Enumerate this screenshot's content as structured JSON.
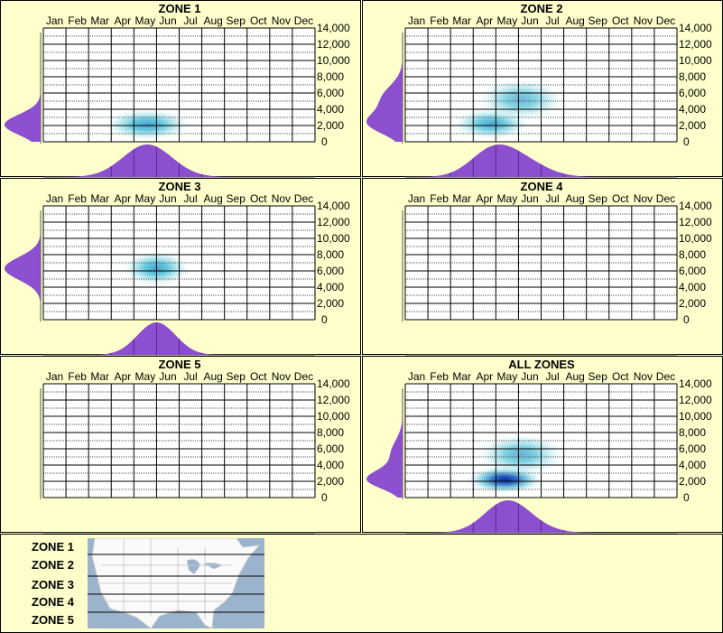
{
  "chart_data": [
    {
      "type": "heatmap",
      "title": "ZONE 1",
      "x_tick_labels": [
        "Jan",
        "Feb",
        "Mar",
        "Apr",
        "May",
        "Jun",
        "Jul",
        "Aug",
        "Sep",
        "Oct",
        "Nov",
        "Dec"
      ],
      "y_tick_labels": [
        "14,000",
        "12,000",
        "10,000",
        "8,000",
        "6,000",
        "4,000",
        "2,000",
        "0"
      ],
      "ylim": [
        0,
        14000
      ],
      "density_peaks": [
        {
          "month": 5.6,
          "elevation": 2100,
          "sd_month": 0.9,
          "sd_elev": 900,
          "weight": 0.55
        }
      ]
    },
    {
      "type": "heatmap",
      "title": "ZONE 2",
      "x_tick_labels": [
        "Jan",
        "Feb",
        "Mar",
        "Apr",
        "May",
        "Jun",
        "Jul",
        "Aug",
        "Sep",
        "Oct",
        "Nov",
        "Dec"
      ],
      "y_tick_labels": [
        "14,000",
        "12,000",
        "10,000",
        "8,000",
        "6,000",
        "4,000",
        "2,000",
        "0"
      ],
      "ylim": [
        0,
        14000
      ],
      "density_peaks": [
        {
          "month": 4.8,
          "elevation": 2200,
          "sd_month": 0.8,
          "sd_elev": 900,
          "weight": 0.45
        },
        {
          "month": 6.1,
          "elevation": 5200,
          "sd_month": 0.9,
          "sd_elev": 1200,
          "weight": 0.3
        }
      ]
    },
    {
      "type": "heatmap",
      "title": "ZONE 3",
      "x_tick_labels": [
        "Jan",
        "Feb",
        "Mar",
        "Apr",
        "May",
        "Jun",
        "Jul",
        "Aug",
        "Sep",
        "Oct",
        "Nov",
        "Dec"
      ],
      "y_tick_labels": [
        "14,000",
        "12,000",
        "10,000",
        "8,000",
        "6,000",
        "4,000",
        "2,000",
        "0"
      ],
      "ylim": [
        0,
        14000
      ],
      "density_peaks": [
        {
          "month": 6.0,
          "elevation": 6300,
          "sd_month": 0.7,
          "sd_elev": 1000,
          "weight": 0.55
        }
      ]
    },
    {
      "type": "heatmap",
      "title": "ZONE 4",
      "x_tick_labels": [
        "Jan",
        "Feb",
        "Mar",
        "Apr",
        "May",
        "Jun",
        "Jul",
        "Aug",
        "Sep",
        "Oct",
        "Nov",
        "Dec"
      ],
      "y_tick_labels": [
        "14,000",
        "12,000",
        "10,000",
        "8,000",
        "6,000",
        "4,000",
        "2,000",
        "0"
      ],
      "ylim": [
        0,
        14000
      ],
      "density_peaks": []
    },
    {
      "type": "heatmap",
      "title": "ZONE 5",
      "x_tick_labels": [
        "Jan",
        "Feb",
        "Mar",
        "Apr",
        "May",
        "Jun",
        "Jul",
        "Aug",
        "Sep",
        "Oct",
        "Nov",
        "Dec"
      ],
      "y_tick_labels": [
        "14,000",
        "12,000",
        "10,000",
        "8,000",
        "6,000",
        "4,000",
        "2,000",
        "0"
      ],
      "ylim": [
        0,
        14000
      ],
      "density_peaks": []
    },
    {
      "type": "heatmap",
      "title": "ALL ZONES",
      "x_tick_labels": [
        "Jan",
        "Feb",
        "Mar",
        "Apr",
        "May",
        "Jun",
        "Jul",
        "Aug",
        "Sep",
        "Oct",
        "Nov",
        "Dec"
      ],
      "y_tick_labels": [
        "14,000",
        "12,000",
        "10,000",
        "8,000",
        "6,000",
        "4,000",
        "2,000",
        "0"
      ],
      "ylim": [
        0,
        14000
      ],
      "density_peaks": [
        {
          "month": 5.4,
          "elevation": 2200,
          "sd_month": 0.8,
          "sd_elev": 800,
          "weight": 1.0
        },
        {
          "month": 6.1,
          "elevation": 5300,
          "sd_month": 0.9,
          "sd_elev": 1200,
          "weight": 0.35
        }
      ]
    }
  ],
  "legend": {
    "zones": [
      "ZONE 1",
      "ZONE 2",
      "ZONE 3",
      "ZONE 4",
      "ZONE 5"
    ]
  },
  "colors": {
    "background": "#ffffcc",
    "marginal": "#8b4fcf",
    "heat_light": "#a8e4ec",
    "heat_mid": "#38b4d0",
    "heat_dark": "#0a3ca8",
    "map_water": "#9bb3cc"
  }
}
